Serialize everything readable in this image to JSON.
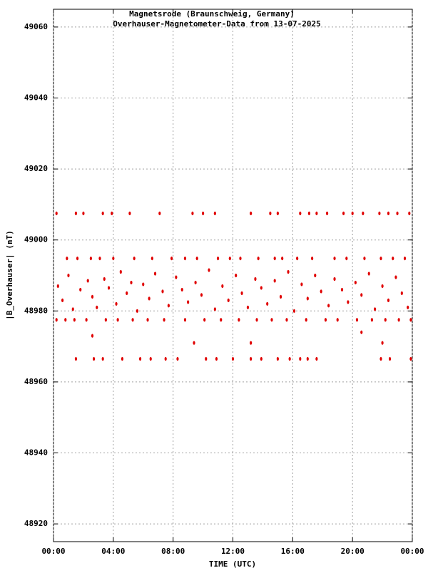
{
  "chart_data": {
    "type": "scatter",
    "title": "Magnetsrode (Braunschweig, Germany)",
    "subtitle": "Overhauser-Magnetometer-Data from 13-07-2025",
    "x_label": "TIME (UTC)",
    "y_label": "|B_Overhauser| (nT)",
    "color": "#e00000",
    "grid": true,
    "xlim": [
      0,
      24
    ],
    "xticks": [
      {
        "value": 0,
        "label": "00:00"
      },
      {
        "value": 4,
        "label": "04:00"
      },
      {
        "value": 8,
        "label": "08:00"
      },
      {
        "value": 12,
        "label": "12:00"
      },
      {
        "value": 16,
        "label": "16:00"
      },
      {
        "value": 20,
        "label": "20:00"
      },
      {
        "value": 24,
        "label": "00:00"
      }
    ],
    "ylim": [
      48915,
      49065
    ],
    "yticks": [
      48920,
      48940,
      48960,
      48980,
      49000,
      49020,
      49040,
      49060
    ],
    "x": [
      0.2,
      1.5,
      2.0,
      3.3,
      3.9,
      5.1,
      7.1,
      9.3,
      10.0,
      10.8,
      13.2,
      14.5,
      15.0,
      16.5,
      17.1,
      17.6,
      18.3,
      19.4,
      20.0,
      20.7,
      21.8,
      22.4,
      23.0,
      23.8,
      1.5,
      2.7,
      3.3,
      4.6,
      5.8,
      6.5,
      7.5,
      8.3,
      10.2,
      10.9,
      12.0,
      13.2,
      13.9,
      15.0,
      15.8,
      16.5,
      17.0,
      17.6,
      21.9,
      22.5,
      23.9,
      0.2,
      0.8,
      1.4,
      2.2,
      3.5,
      4.3,
      5.3,
      6.3,
      7.4,
      8.8,
      10.1,
      11.2,
      12.4,
      13.6,
      14.6,
      15.6,
      16.9,
      18.2,
      19.0,
      20.3,
      21.3,
      22.2,
      23.1,
      23.9,
      0.9,
      1.6,
      2.5,
      3.1,
      4.0,
      5.4,
      6.6,
      7.9,
      8.8,
      9.6,
      11.0,
      11.8,
      12.5,
      13.7,
      14.8,
      15.3,
      16.3,
      17.3,
      18.8,
      19.6,
      20.8,
      21.9,
      22.7,
      23.5,
      0.3,
      0.6,
      1.0,
      1.3,
      1.8,
      2.3,
      2.6,
      2.9,
      3.4,
      3.7,
      4.2,
      4.5,
      4.9,
      5.2,
      5.6,
      6.0,
      6.4,
      6.8,
      7.3,
      7.7,
      8.2,
      8.6,
      9.0,
      9.5,
      9.9,
      10.4,
      10.8,
      11.3,
      11.7,
      12.2,
      12.6,
      13.0,
      13.5,
      13.9,
      14.3,
      14.8,
      15.2,
      15.7,
      16.1,
      16.6,
      17.0,
      17.5,
      17.9,
      18.4,
      18.8,
      19.3,
      19.7,
      20.2,
      20.6,
      21.1,
      21.5,
      22.0,
      22.4,
      22.9,
      23.3,
      23.7,
      2.6,
      9.4,
      13.2,
      20.6,
      22.0
    ],
    "values": [
      49007.5,
      49007.5,
      49007.5,
      49007.5,
      49007.5,
      49007.5,
      49007.5,
      49007.5,
      49007.5,
      49007.5,
      49007.5,
      49007.5,
      49007.5,
      49007.5,
      49007.5,
      49007.5,
      49007.5,
      49007.5,
      49007.5,
      49007.5,
      49007.5,
      49007.5,
      49007.5,
      49007.5,
      48966.5,
      48966.5,
      48966.5,
      48966.5,
      48966.5,
      48966.5,
      48966.5,
      48966.5,
      48966.5,
      48966.5,
      48966.5,
      48966.5,
      48966.5,
      48966.5,
      48966.5,
      48966.5,
      48966.5,
      48966.5,
      48966.5,
      48966.5,
      48966.5,
      48977.5,
      48977.5,
      48977.5,
      48977.5,
      48977.5,
      48977.5,
      48977.5,
      48977.5,
      48977.5,
      48977.5,
      48977.5,
      48977.5,
      48977.5,
      48977.5,
      48977.5,
      48977.5,
      48977.5,
      48977.5,
      48977.5,
      48977.5,
      48977.5,
      48977.5,
      48977.5,
      48977.5,
      48994.8,
      48994.8,
      48994.8,
      48994.8,
      48994.8,
      48994.8,
      48994.8,
      48994.8,
      48994.8,
      48994.8,
      48994.8,
      48994.8,
      48994.8,
      48994.8,
      48994.8,
      48994.8,
      48994.8,
      48994.8,
      48994.8,
      48994.8,
      48994.8,
      48994.8,
      48994.8,
      48994.8,
      48987,
      48983,
      48990,
      48980.5,
      48986,
      48988.5,
      48984,
      48981,
      48989,
      48986.5,
      48982,
      48991,
      48985,
      48988,
      48980,
      48987.5,
      48983.5,
      48990.5,
      48985.5,
      48981.5,
      48989.5,
      48986,
      48982.5,
      48988,
      48984.5,
      48991.5,
      48980.5,
      48987,
      48983,
      48990,
      48985,
      48981,
      48989,
      48986.5,
      48982,
      48988.5,
      48984,
      48991,
      48980,
      48987.5,
      48983.5,
      48990,
      48985.5,
      48981.5,
      48989,
      48986,
      48982.5,
      48988,
      48984.5,
      48990.5,
      48980.5,
      48987,
      48983,
      48989.5,
      48985,
      48981,
      48973,
      48971,
      48971,
      48974,
      48971
    ]
  }
}
